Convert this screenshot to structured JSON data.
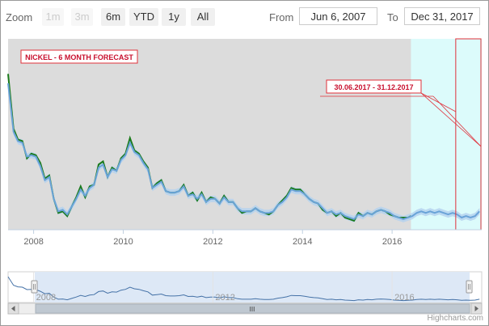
{
  "toolbar": {
    "zoom_label": "Zoom",
    "buttons": [
      {
        "label": "1m",
        "state": "disabled"
      },
      {
        "label": "3m",
        "state": "disabled"
      },
      {
        "label": "6m",
        "state": "enabled"
      },
      {
        "label": "YTD",
        "state": "enabled"
      },
      {
        "label": "1y",
        "state": "enabled"
      },
      {
        "label": "All",
        "state": "enabled"
      }
    ],
    "from_label": "From",
    "from_value": "Jun 6, 2007",
    "to_label": "To",
    "to_value": "Dec 31, 2017"
  },
  "chart_data": {
    "type": "line",
    "title": "NICKEL - 6 MONTH FORECAST",
    "forecast_annotation": "30.06.2017 - 31.12.2017",
    "x_tick_labels": [
      "2008",
      "2010",
      "2012",
      "2014",
      "2016"
    ],
    "x_range": [
      2007.43,
      2018.0
    ],
    "y_range": [
      0,
      1
    ],
    "grid": false,
    "colors": {
      "actual": "#1a7a1a",
      "model": "#6aa3d8",
      "band": "#b5d2ee",
      "plot_bg": "#dcdcdc",
      "forecast_bg": "#dcfbfb",
      "forecast_box": "#e0303a",
      "navigator_fill": "#dde8f6",
      "navigator_line": "#4572a7"
    },
    "shaded_region_start": 2016.42,
    "forecast_box_range": [
      2017.42,
      2018.0
    ],
    "series": [
      {
        "role": "actual",
        "x": [
          2007.43,
          2007.55,
          2007.65,
          2007.75,
          2007.85,
          2007.95,
          2008.05,
          2008.15,
          2008.25,
          2008.35,
          2008.45,
          2008.55,
          2008.65,
          2008.75,
          2008.85,
          2008.95,
          2009.05,
          2009.15,
          2009.25,
          2009.35,
          2009.45,
          2009.55,
          2009.65,
          2009.75,
          2009.85,
          2009.95,
          2010.05,
          2010.15,
          2010.25,
          2010.35,
          2010.45,
          2010.55,
          2010.65,
          2010.75,
          2010.85,
          2010.95,
          2011.05,
          2011.15,
          2011.25,
          2011.35,
          2011.45,
          2011.55,
          2011.65,
          2011.75,
          2011.85,
          2011.95,
          2012.05,
          2012.15,
          2012.25,
          2012.35,
          2012.45,
          2012.55,
          2012.65,
          2012.75,
          2012.85,
          2012.95,
          2013.05,
          2013.15,
          2013.25,
          2013.35,
          2013.45,
          2013.55,
          2013.65,
          2013.75,
          2013.85,
          2013.95,
          2014.05,
          2014.15,
          2014.25,
          2014.35,
          2014.45,
          2014.55,
          2014.65,
          2014.75,
          2014.85,
          2014.95,
          2015.05,
          2015.15,
          2015.25,
          2015.35,
          2015.45,
          2015.55,
          2015.65,
          2015.75,
          2015.85,
          2015.95,
          2016.05,
          2016.15,
          2016.25,
          2016.35,
          2016.42
        ],
        "values": [
          0.92,
          0.57,
          0.5,
          0.49,
          0.38,
          0.41,
          0.4,
          0.35,
          0.25,
          0.27,
          0.12,
          0.03,
          0.04,
          0.01,
          0.07,
          0.13,
          0.2,
          0.13,
          0.2,
          0.21,
          0.34,
          0.36,
          0.26,
          0.32,
          0.3,
          0.38,
          0.41,
          0.51,
          0.43,
          0.41,
          0.36,
          0.32,
          0.19,
          0.22,
          0.24,
          0.17,
          0.16,
          0.16,
          0.17,
          0.21,
          0.14,
          0.16,
          0.11,
          0.16,
          0.1,
          0.13,
          0.12,
          0.09,
          0.14,
          0.1,
          0.1,
          0.06,
          0.03,
          0.04,
          0.04,
          0.06,
          0.04,
          0.03,
          0.02,
          0.04,
          0.08,
          0.11,
          0.14,
          0.19,
          0.18,
          0.18,
          0.15,
          0.12,
          0.1,
          0.09,
          0.05,
          0.03,
          0.04,
          0.01,
          0.03,
          0.0,
          -0.01,
          -0.02,
          0.03,
          0.01,
          0.03,
          0.02,
          0.04,
          0.05,
          0.04,
          0.02,
          0.01,
          0.0,
          0.0,
          0.0,
          0.01
        ]
      },
      {
        "role": "model",
        "x": [
          2007.43,
          2007.55,
          2007.65,
          2007.75,
          2007.85,
          2007.95,
          2008.05,
          2008.15,
          2008.25,
          2008.35,
          2008.45,
          2008.55,
          2008.65,
          2008.75,
          2008.85,
          2008.95,
          2009.05,
          2009.15,
          2009.25,
          2009.35,
          2009.45,
          2009.55,
          2009.65,
          2009.75,
          2009.85,
          2009.95,
          2010.05,
          2010.15,
          2010.25,
          2010.35,
          2010.45,
          2010.55,
          2010.65,
          2010.75,
          2010.85,
          2010.95,
          2011.05,
          2011.15,
          2011.25,
          2011.35,
          2011.45,
          2011.55,
          2011.65,
          2011.75,
          2011.85,
          2011.95,
          2012.05,
          2012.15,
          2012.25,
          2012.35,
          2012.45,
          2012.55,
          2012.65,
          2012.75,
          2012.85,
          2012.95,
          2013.05,
          2013.15,
          2013.25,
          2013.35,
          2013.45,
          2013.55,
          2013.65,
          2013.75,
          2013.85,
          2013.95,
          2014.05,
          2014.15,
          2014.25,
          2014.35,
          2014.45,
          2014.55,
          2014.65,
          2014.75,
          2014.85,
          2014.95,
          2015.05,
          2015.15,
          2015.25,
          2015.35,
          2015.45,
          2015.55,
          2015.65,
          2015.75,
          2015.85,
          2015.95,
          2016.05,
          2016.15,
          2016.25,
          2016.35,
          2016.45,
          2016.55,
          2016.65,
          2016.75,
          2016.85,
          2016.95,
          2017.05,
          2017.15,
          2017.25,
          2017.35,
          2017.45,
          2017.55,
          2017.65,
          2017.75,
          2017.85,
          2017.95
        ],
        "values": [
          0.86,
          0.55,
          0.49,
          0.48,
          0.39,
          0.4,
          0.39,
          0.33,
          0.24,
          0.26,
          0.12,
          0.04,
          0.05,
          0.02,
          0.07,
          0.12,
          0.18,
          0.14,
          0.19,
          0.21,
          0.32,
          0.34,
          0.26,
          0.31,
          0.3,
          0.37,
          0.4,
          0.48,
          0.42,
          0.4,
          0.35,
          0.31,
          0.19,
          0.21,
          0.23,
          0.17,
          0.16,
          0.16,
          0.17,
          0.2,
          0.14,
          0.15,
          0.12,
          0.15,
          0.1,
          0.12,
          0.12,
          0.09,
          0.13,
          0.1,
          0.1,
          0.06,
          0.04,
          0.04,
          0.04,
          0.06,
          0.04,
          0.03,
          0.03,
          0.04,
          0.08,
          0.1,
          0.13,
          0.18,
          0.17,
          0.17,
          0.15,
          0.12,
          0.1,
          0.09,
          0.06,
          0.03,
          0.04,
          0.02,
          0.03,
          0.01,
          0.0,
          -0.01,
          0.02,
          0.01,
          0.03,
          0.02,
          0.04,
          0.05,
          0.04,
          0.03,
          0.01,
          0.0,
          -0.01,
          0.0,
          0.01,
          0.03,
          0.04,
          0.03,
          0.04,
          0.03,
          0.04,
          0.03,
          0.02,
          0.03,
          0.02,
          0.0,
          0.01,
          0.0,
          0.01,
          0.04
        ]
      }
    ]
  },
  "navigator": {
    "x_tick_labels": [
      "2008",
      "2012",
      "2016"
    ],
    "scrollbar_grip": "III"
  },
  "credits": "Highcharts.com"
}
